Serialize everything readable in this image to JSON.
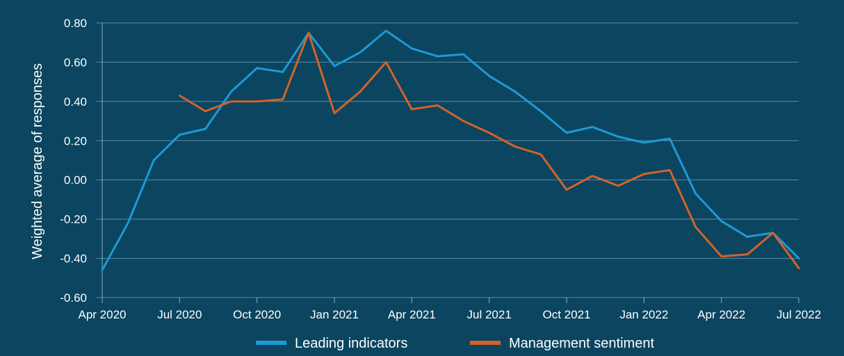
{
  "chart_data": {
    "type": "line",
    "title": "",
    "xlabel": "",
    "ylabel": "Weighted average of responses",
    "ylim": [
      -0.6,
      0.8
    ],
    "yticks": [
      "0.80",
      "0.60",
      "0.40",
      "0.20",
      "0.00",
      "-0.20",
      "-0.40",
      "-0.60"
    ],
    "xticks": [
      "Apr 2020",
      "Jul 2020",
      "Oct 2020",
      "Jan 2021",
      "Apr 2021",
      "Jul 2021",
      "Oct 2021",
      "Jan 2022",
      "Apr 2022",
      "Jul 2022"
    ],
    "x": [
      "Apr 2020",
      "May 2020",
      "Jun 2020",
      "Jul 2020",
      "Aug 2020",
      "Sep 2020",
      "Oct 2020",
      "Nov 2020",
      "Dec 2020",
      "Jan 2021",
      "Feb 2021",
      "Mar 2021",
      "Apr 2021",
      "May 2021",
      "Jun 2021",
      "Jul 2021",
      "Aug 2021",
      "Sep 2021",
      "Oct 2021",
      "Nov 2021",
      "Dec 2021",
      "Jan 2022",
      "Feb 2022",
      "Mar 2022",
      "Apr 2022",
      "May 2022",
      "Jun 2022",
      "Jul 2022"
    ],
    "grid": true,
    "legend_position": "bottom",
    "background": "#0b4560",
    "series": [
      {
        "name": "Leading indicators",
        "color": "#1d9ad6",
        "values": [
          -0.46,
          -0.22,
          0.1,
          0.23,
          0.26,
          0.45,
          0.57,
          0.55,
          0.75,
          0.58,
          0.65,
          0.76,
          0.67,
          0.63,
          0.64,
          0.53,
          0.45,
          0.35,
          0.24,
          0.27,
          0.22,
          0.19,
          0.21,
          -0.07,
          -0.21,
          -0.29,
          -0.27,
          -0.4
        ]
      },
      {
        "name": "Management sentiment",
        "color": "#d4622a",
        "values": [
          null,
          null,
          null,
          0.43,
          0.35,
          0.4,
          0.4,
          0.41,
          0.75,
          0.34,
          0.45,
          0.6,
          0.36,
          0.38,
          0.3,
          0.24,
          0.17,
          0.13,
          -0.05,
          0.02,
          -0.03,
          0.03,
          0.05,
          -0.24,
          -0.39,
          -0.38,
          -0.27,
          -0.45
        ]
      }
    ]
  }
}
